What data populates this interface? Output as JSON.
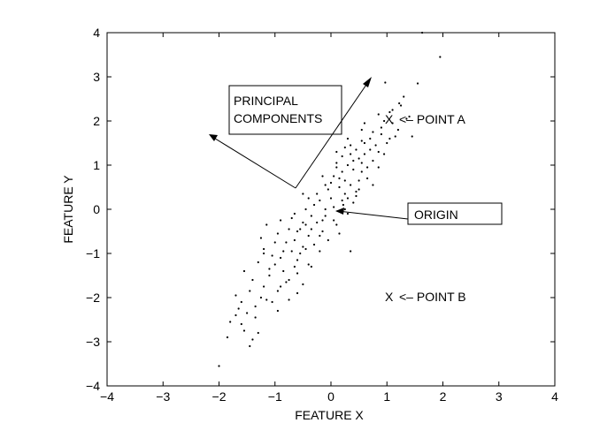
{
  "chart_data": {
    "type": "scatter",
    "title": "",
    "xlabel": "FEATURE X",
    "ylabel": "FEATURE Y",
    "xlim": [
      -4,
      4
    ],
    "ylim": [
      -4,
      4
    ],
    "xticks": [
      "−4",
      "−3",
      "−2",
      "−1",
      "0",
      "1",
      "2",
      "3",
      "4"
    ],
    "yticks": [
      "4",
      "3",
      "2",
      "1",
      "0",
      "−1",
      "−2",
      "−3",
      "−4"
    ],
    "grid": false,
    "legend": "none",
    "marker_color": "#000000",
    "series": [
      {
        "points": [
          [
            1.63,
            4.0
          ],
          [
            1.95,
            3.45
          ],
          [
            0.97,
            2.87
          ],
          [
            1.3,
            2.55
          ],
          [
            1.55,
            2.85
          ],
          [
            1.22,
            2.4
          ],
          [
            1.05,
            2.2
          ],
          [
            1.35,
            2.05
          ],
          [
            0.6,
            1.95
          ],
          [
            0.55,
            1.8
          ],
          [
            0.9,
            1.85
          ],
          [
            1.15,
            1.65
          ],
          [
            0.7,
            1.6
          ],
          [
            0.35,
            1.45
          ],
          [
            0.45,
            1.35
          ],
          [
            0.2,
            1.2
          ],
          [
            0.3,
            1.0
          ],
          [
            0.1,
            0.95
          ],
          [
            0.55,
            1.05
          ],
          [
            0.75,
            1.1
          ],
          [
            0.05,
            0.75
          ],
          [
            0.25,
            0.65
          ],
          [
            -0.05,
            0.45
          ],
          [
            0.15,
            0.5
          ],
          [
            0.35,
            0.55
          ],
          [
            0.45,
            0.3
          ],
          [
            0.3,
            0.25
          ],
          [
            0.4,
            0.15
          ],
          [
            0.22,
            0.1
          ],
          [
            0.05,
            0.05
          ],
          [
            -0.1,
            0.0
          ],
          [
            -0.2,
            0.2
          ],
          [
            -0.35,
            -0.15
          ],
          [
            -0.25,
            -0.3
          ],
          [
            -0.45,
            -0.35
          ],
          [
            -0.55,
            -0.45
          ],
          [
            -0.4,
            -0.6
          ],
          [
            -0.65,
            -0.7
          ],
          [
            -0.5,
            -0.85
          ],
          [
            -0.8,
            -0.75
          ],
          [
            -0.7,
            -0.95
          ],
          [
            -0.9,
            -1.1
          ],
          [
            -0.6,
            -1.15
          ],
          [
            -1.0,
            -1.25
          ],
          [
            -0.85,
            -1.4
          ],
          [
            -1.1,
            -1.5
          ],
          [
            -0.75,
            -1.6
          ],
          [
            -1.2,
            -1.75
          ],
          [
            -0.95,
            -1.85
          ],
          [
            -1.25,
            -2.0
          ],
          [
            -1.05,
            -2.1
          ],
          [
            -1.35,
            -2.2
          ],
          [
            -0.6,
            -1.9
          ],
          [
            -0.5,
            -1.7
          ],
          [
            -1.5,
            -2.35
          ],
          [
            -1.6,
            -2.6
          ],
          [
            -1.7,
            -2.4
          ],
          [
            -1.3,
            -2.8
          ],
          [
            -1.4,
            -2.95
          ],
          [
            -1.85,
            -2.9
          ],
          [
            -1.45,
            -3.1
          ],
          [
            -2.0,
            -3.55
          ],
          [
            -1.55,
            -1.4
          ],
          [
            -1.2,
            -0.9
          ],
          [
            -0.95,
            -0.55
          ],
          [
            -0.7,
            -0.2
          ],
          [
            -0.45,
            0.0
          ],
          [
            -0.25,
            0.35
          ],
          [
            0.0,
            0.6
          ],
          [
            0.2,
            0.85
          ],
          [
            0.4,
            0.9
          ],
          [
            0.6,
            1.25
          ],
          [
            0.8,
            1.45
          ],
          [
            1.0,
            1.5
          ],
          [
            1.2,
            1.8
          ],
          [
            1.4,
            2.1
          ],
          [
            1.45,
            1.65
          ],
          [
            0.85,
            0.95
          ],
          [
            0.65,
            0.7
          ],
          [
            0.5,
            0.45
          ],
          [
            0.3,
            -0.1
          ],
          [
            0.1,
            -0.35
          ],
          [
            -0.15,
            -0.5
          ],
          [
            -0.3,
            -0.8
          ],
          [
            -0.55,
            -1.0
          ],
          [
            -0.35,
            -1.3
          ],
          [
            -0.2,
            -0.95
          ],
          [
            -0.05,
            -0.7
          ],
          [
            0.15,
            -0.55
          ],
          [
            0.35,
            -0.95
          ],
          [
            -1.15,
            -0.35
          ],
          [
            -0.9,
            -0.25
          ],
          [
            -1.3,
            -1.2
          ],
          [
            -1.45,
            -1.85
          ],
          [
            -1.7,
            -1.95
          ],
          [
            -0.5,
            0.35
          ],
          [
            -0.15,
            0.75
          ],
          [
            0.1,
            1.3
          ],
          [
            0.3,
            1.6
          ],
          [
            0.85,
            2.15
          ],
          [
            1.1,
            2.25
          ],
          [
            0.6,
            1.5
          ],
          [
            0.95,
            1.25
          ],
          [
            0.75,
            0.55
          ],
          [
            0.55,
            0.85
          ],
          [
            -0.8,
            -1.65
          ],
          [
            -1.05,
            -1.05
          ],
          [
            -1.25,
            -0.65
          ],
          [
            -0.6,
            -1.45
          ],
          [
            -0.95,
            -2.3
          ],
          [
            -0.75,
            -2.05
          ],
          [
            -0.4,
            -1.25
          ],
          [
            -0.1,
            -0.15
          ],
          [
            0.0,
            0.25
          ],
          [
            0.25,
            0.35
          ],
          [
            0.5,
            0.65
          ],
          [
            0.7,
            1.35
          ],
          [
            0.9,
            1.7
          ],
          [
            1.25,
            2.35
          ],
          [
            1.1,
            1.95
          ],
          [
            0.4,
            1.1
          ],
          [
            0.15,
            0.7
          ],
          [
            -0.3,
            0.1
          ],
          [
            -0.6,
            -0.5
          ],
          [
            -0.85,
            -0.95
          ],
          [
            -1.1,
            -1.35
          ],
          [
            -1.4,
            -1.6
          ],
          [
            -1.6,
            -2.1
          ],
          [
            -1.8,
            -2.55
          ],
          [
            -1.55,
            -2.75
          ],
          [
            -1.65,
            -2.25
          ],
          [
            -1.35,
            -2.45
          ],
          [
            -1.15,
            -2.05
          ],
          [
            -0.9,
            -1.75
          ],
          [
            -0.65,
            -1.3
          ],
          [
            -0.45,
            -0.9
          ],
          [
            -0.2,
            -0.6
          ],
          [
            0.05,
            -0.25
          ],
          [
            0.25,
            0.0
          ],
          [
            0.45,
            0.4
          ],
          [
            0.65,
            0.95
          ],
          [
            0.85,
            1.3
          ],
          [
            1.05,
            1.6
          ],
          [
            0.35,
            1.25
          ],
          [
            0.1,
            1.05
          ],
          [
            -0.1,
            0.55
          ],
          [
            -0.4,
            0.25
          ],
          [
            -0.65,
            -0.1
          ],
          [
            -0.5,
            -0.3
          ],
          [
            -0.75,
            -0.45
          ],
          [
            -1.0,
            -0.75
          ],
          [
            -1.2,
            -1.0
          ],
          [
            -0.35,
            -0.45
          ],
          [
            -0.15,
            -0.25
          ],
          [
            0.2,
            0.2
          ],
          [
            0.55,
            1.55
          ],
          [
            0.75,
            1.75
          ],
          [
            0.95,
            2.0
          ],
          [
            0.25,
            1.4
          ],
          [
            0.5,
            1.15
          ]
        ]
      }
    ],
    "annotations": {
      "principal_components": "PRINCIPAL\nCOMPONENTS",
      "origin": "ORIGIN",
      "point_a_marker": "X",
      "point_a_label": "<– POINT A",
      "point_b_marker": "X",
      "point_b_label": "<– POINT B"
    }
  }
}
